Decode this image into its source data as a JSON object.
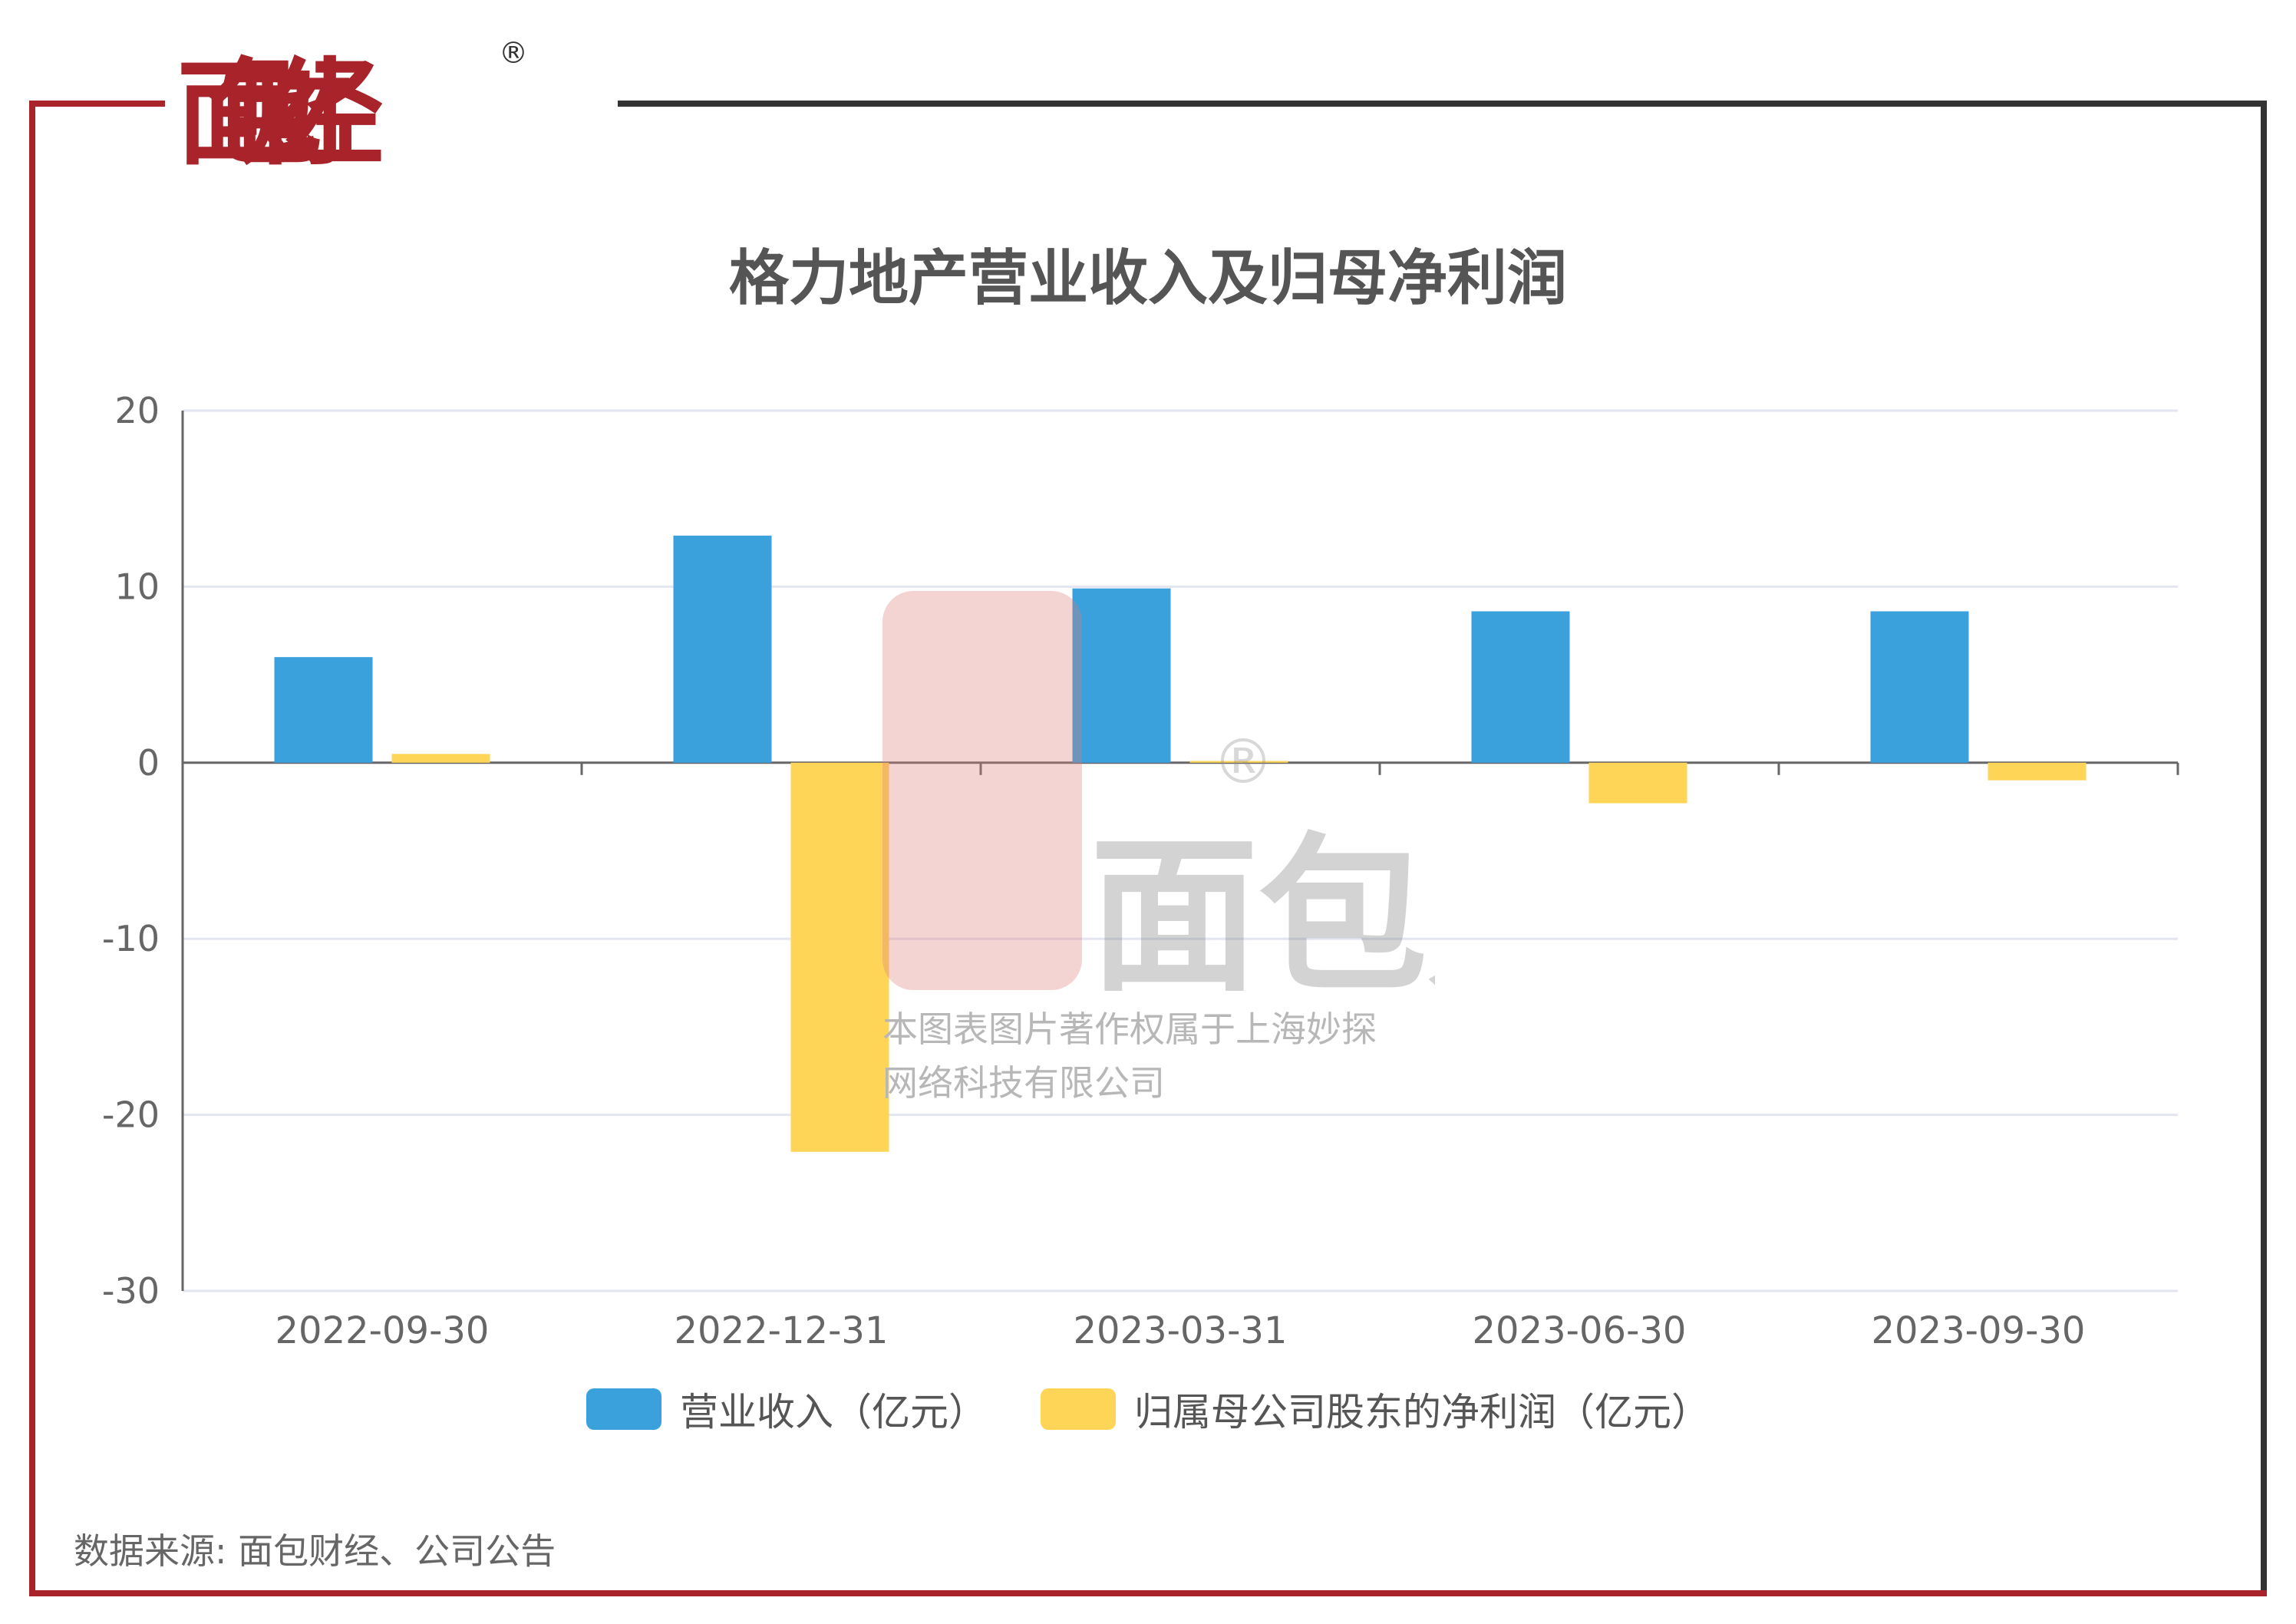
{
  "brand": {
    "logo_text": "面包财经",
    "registered_mark": "®"
  },
  "watermark": {
    "logo_text": "面包财经",
    "line1": "本图表图片著作权属于上海妙探",
    "line2": "网络科技有限公司"
  },
  "colors": {
    "frame_red": "#a8232a",
    "frame_dark": "#333333",
    "revenue": "#3aa1dc",
    "net_profit": "#ffd558"
  },
  "chart_data": {
    "type": "bar",
    "title": "格力地产营业收入及归母净利润",
    "categories": [
      "2022-09-30",
      "2022-12-31",
      "2023-03-31",
      "2023-06-30",
      "2023-09-30"
    ],
    "series": [
      {
        "name": "营业收入（亿元）",
        "values": [
          6.0,
          12.9,
          9.9,
          8.6,
          8.6
        ]
      },
      {
        "name": "归属母公司股东的净利润（亿元）",
        "values": [
          0.5,
          -22.1,
          0.1,
          -2.3,
          -1.0
        ]
      }
    ],
    "ylim": [
      -30,
      20
    ],
    "yticks": [
      "20",
      "10",
      "0",
      "-10",
      "-20",
      "-30"
    ],
    "grid": true,
    "legend": "bottom"
  },
  "source": "数据来源: 面包财经、公司公告"
}
